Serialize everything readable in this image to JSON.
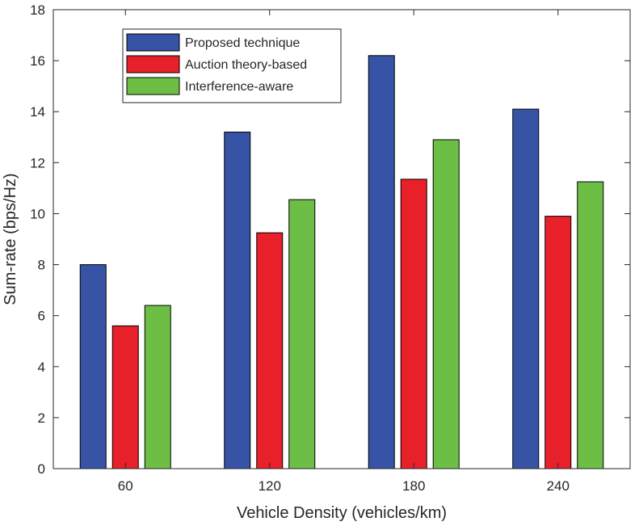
{
  "chart_data": {
    "type": "bar",
    "title": "",
    "xlabel": "Vehicle Density (vehicles/km)",
    "ylabel": "Sum-rate (bps/Hz)",
    "categories": [
      "60",
      "120",
      "180",
      "240"
    ],
    "ylim": [
      0,
      18
    ],
    "yticks": [
      "0",
      "2",
      "4",
      "6",
      "8",
      "10",
      "12",
      "14",
      "16",
      "18"
    ],
    "grid": false,
    "legend_position": "top-left",
    "series": [
      {
        "name": "Proposed technique",
        "color": "#3653a5",
        "values": [
          8.0,
          13.2,
          16.2,
          14.1
        ]
      },
      {
        "name": "Auction theory-based",
        "color": "#e8202a",
        "values": [
          5.6,
          9.25,
          11.35,
          9.9
        ]
      },
      {
        "name": "Interference-aware",
        "color": "#6dbe45",
        "values": [
          6.4,
          10.55,
          12.9,
          11.25
        ]
      }
    ]
  }
}
